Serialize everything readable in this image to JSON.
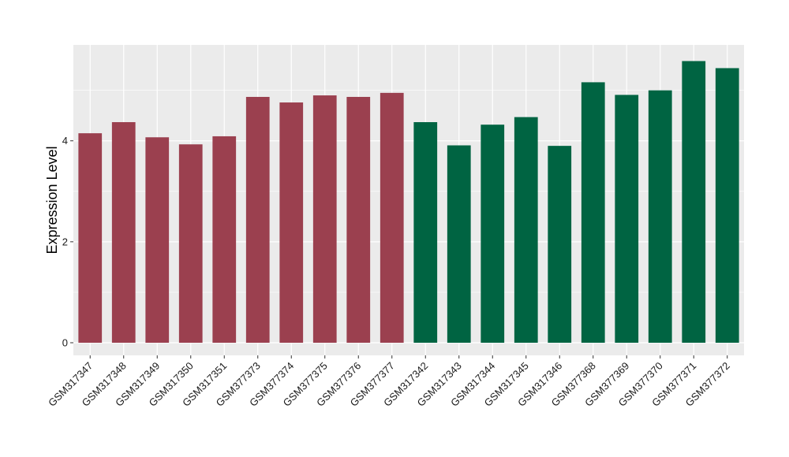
{
  "chart_data": {
    "type": "bar",
    "ylabel": "Expression Level",
    "xlabel": "",
    "ylim": [
      -0.25,
      5.9
    ],
    "yticks": [
      0,
      2,
      4
    ],
    "grid": true,
    "categories": [
      "GSM317347",
      "GSM317348",
      "GSM317349",
      "GSM317350",
      "GSM317351",
      "GSM377373",
      "GSM377374",
      "GSM377375",
      "GSM377376",
      "GSM377377",
      "GSM317342",
      "GSM317343",
      "GSM317344",
      "GSM317345",
      "GSM317346",
      "GSM377368",
      "GSM377369",
      "GSM377370",
      "GSM377371",
      "GSM377372"
    ],
    "values": [
      4.15,
      4.37,
      4.07,
      3.93,
      4.09,
      4.87,
      4.76,
      4.9,
      4.87,
      4.95,
      4.37,
      3.91,
      4.32,
      4.47,
      3.9,
      5.16,
      4.91,
      5.0,
      5.58,
      5.44
    ],
    "colors": [
      "#9b404f",
      "#9b404f",
      "#9b404f",
      "#9b404f",
      "#9b404f",
      "#9b404f",
      "#9b404f",
      "#9b404f",
      "#9b404f",
      "#9b404f",
      "#006442",
      "#006442",
      "#006442",
      "#006442",
      "#006442",
      "#006442",
      "#006442",
      "#006442",
      "#006442",
      "#006442"
    ],
    "panel_background": "#ebebeb",
    "grid_color": "#ffffff"
  }
}
